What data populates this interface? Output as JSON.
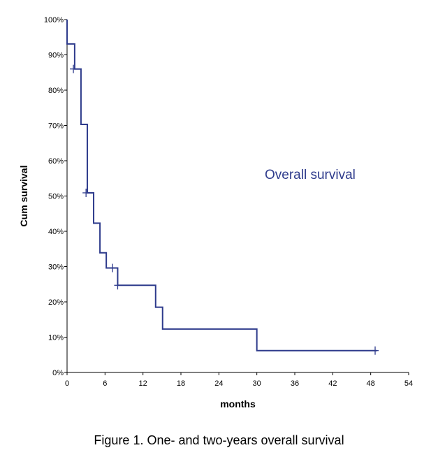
{
  "chart_data": {
    "type": "line",
    "subtype": "step (Kaplan-Meier)",
    "title": "",
    "xlabel": "months",
    "ylabel": "Cum survival",
    "xlim": [
      0,
      54
    ],
    "ylim": [
      0,
      100
    ],
    "x_ticks": [
      "0",
      "6",
      "12",
      "18",
      "24",
      "30",
      "36",
      "42",
      "48",
      "54"
    ],
    "y_ticks": [
      "0%",
      "10%",
      "20%",
      "30%",
      "40%",
      "50%",
      "60%",
      "70%",
      "80%",
      "90%",
      "100%"
    ],
    "annotation": "Overall survival",
    "series_color": "#2e3b8c",
    "grid": false,
    "series": [
      {
        "steps": [
          {
            "x": 0,
            "y": 100
          },
          {
            "x": 0,
            "y": 93.1
          },
          {
            "x": 1.2,
            "y": 86.0
          },
          {
            "x": 2.2,
            "y": 70.3
          },
          {
            "x": 3.2,
            "y": 50.9
          },
          {
            "x": 4.2,
            "y": 42.3
          },
          {
            "x": 5.2,
            "y": 33.9
          },
          {
            "x": 6.2,
            "y": 29.6
          },
          {
            "x": 8.0,
            "y": 24.7
          },
          {
            "x": 14.0,
            "y": 18.5
          },
          {
            "x": 15.1,
            "y": 12.3
          },
          {
            "x": 30.0,
            "y": 6.2
          },
          {
            "x": 49.0,
            "y": 6.2
          }
        ],
        "censored": [
          {
            "x": 1.0,
            "y": 86.0
          },
          {
            "x": 3.0,
            "y": 50.9
          },
          {
            "x": 7.2,
            "y": 29.6
          },
          {
            "x": 8.0,
            "y": 24.7
          },
          {
            "x": 48.7,
            "y": 6.2
          }
        ]
      }
    ]
  },
  "caption": "Figure 1. One- and two-years overall survival"
}
